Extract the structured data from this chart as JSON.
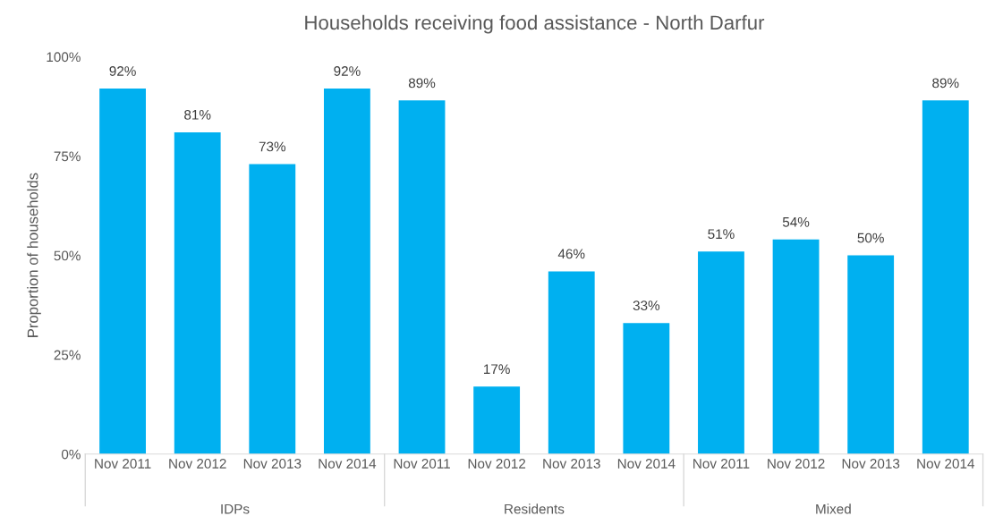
{
  "chart_data": {
    "type": "bar",
    "title": "Households receiving food assistance - North Darfur",
    "ylabel": "Proportion of households",
    "categories": [
      "Nov 2011",
      "Nov 2012",
      "Nov 2013",
      "Nov 2014",
      "Nov 2011",
      "Nov 2012",
      "Nov 2013",
      "Nov 2014",
      "Nov 2011",
      "Nov 2012",
      "Nov 2013",
      "Nov 2014"
    ],
    "values": [
      92,
      81,
      73,
      92,
      89,
      17,
      46,
      33,
      51,
      54,
      50,
      89
    ],
    "value_labels": [
      "92%",
      "81%",
      "73%",
      "92%",
      "89%",
      "17%",
      "46%",
      "33%",
      "51%",
      "54%",
      "50%",
      "89%"
    ],
    "color": "#00b0f0",
    "ylim": [
      0,
      100
    ],
    "yticks": [
      {
        "value": 0,
        "label": "0%"
      },
      {
        "value": 25,
        "label": "25%"
      },
      {
        "value": 50,
        "label": "50%"
      },
      {
        "value": 75,
        "label": "75%"
      },
      {
        "value": 100,
        "label": "100%"
      }
    ],
    "annotations": [
      "IDPs",
      "Residents",
      "Mixed"
    ]
  }
}
